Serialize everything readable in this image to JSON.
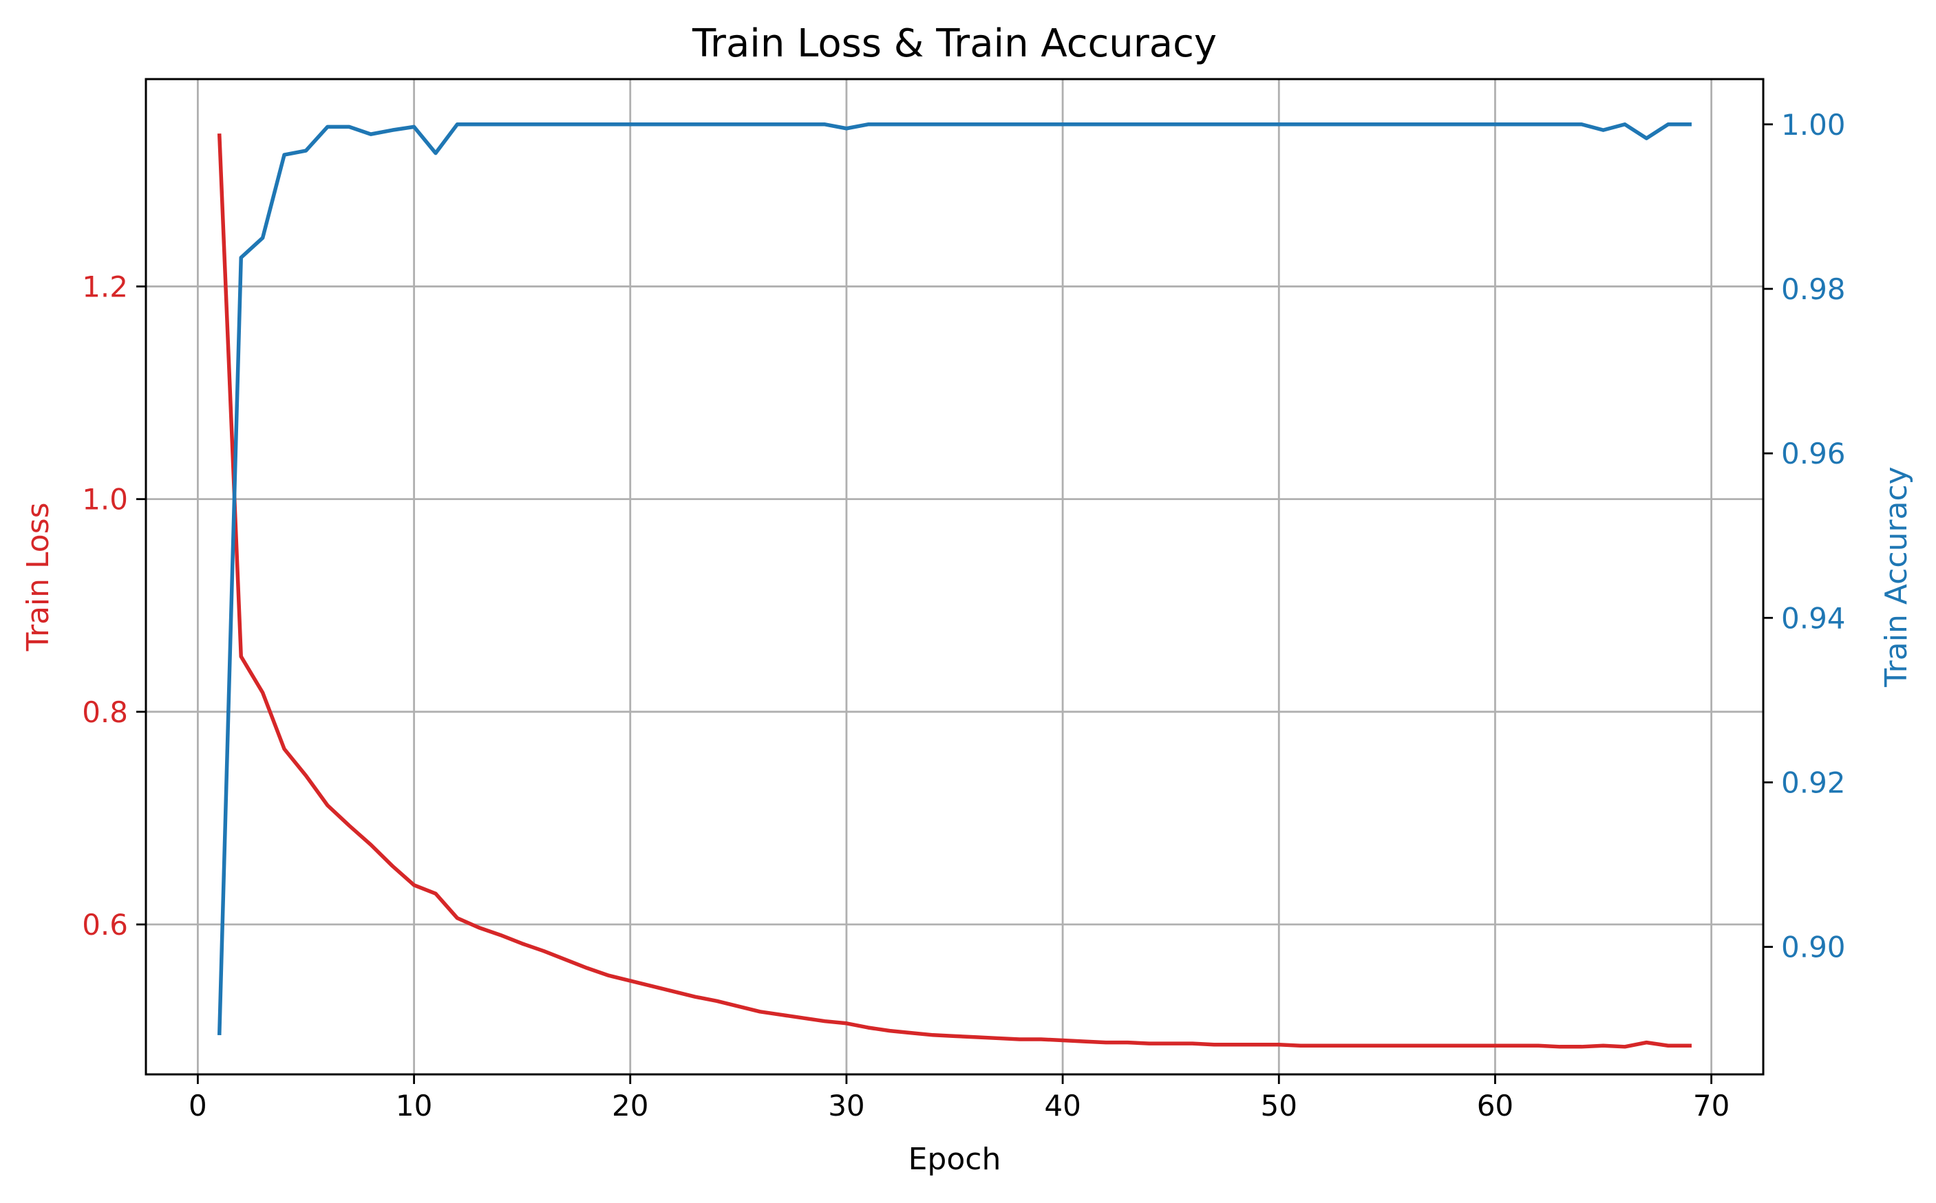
{
  "chart_data": {
    "type": "line",
    "title": "Train Loss & Train Accuracy",
    "xlabel": "Epoch",
    "xlim": [
      -2.4,
      72.4
    ],
    "xticks": [
      0,
      10,
      20,
      30,
      40,
      50,
      60,
      70
    ],
    "grid": true,
    "legend": "none",
    "axes": {
      "left": {
        "label": "Train Loss",
        "color": "#d62728",
        "ylim": [
          0.459,
          1.395
        ],
        "ticks": [
          0.6,
          0.8,
          1.0,
          1.2
        ],
        "tick_labels": [
          "0.6",
          "0.8",
          "1.0",
          "1.2"
        ]
      },
      "right": {
        "label": "Train Accuracy",
        "color": "#1f77b4",
        "ylim": [
          0.8845,
          1.0055
        ],
        "ticks": [
          0.9,
          0.92,
          0.94,
          0.96,
          0.98,
          1.0
        ],
        "tick_labels": [
          "0.90",
          "0.92",
          "0.94",
          "0.96",
          "0.98",
          "1.00"
        ]
      }
    },
    "x": [
      1,
      2,
      3,
      4,
      5,
      6,
      7,
      8,
      9,
      10,
      11,
      12,
      13,
      14,
      15,
      16,
      17,
      18,
      19,
      20,
      21,
      22,
      23,
      24,
      25,
      26,
      27,
      28,
      29,
      30,
      31,
      32,
      33,
      34,
      35,
      36,
      37,
      38,
      39,
      40,
      41,
      42,
      43,
      44,
      45,
      46,
      47,
      48,
      49,
      50,
      51,
      52,
      53,
      54,
      55,
      56,
      57,
      58,
      59,
      60,
      61,
      62,
      63,
      64,
      65,
      66,
      67,
      68,
      69
    ],
    "series": [
      {
        "axis": "left",
        "color": "#d62728",
        "values": [
          1.342,
          0.852,
          0.818,
          0.765,
          0.74,
          0.712,
          0.693,
          0.675,
          0.655,
          0.637,
          0.629,
          0.606,
          0.597,
          0.59,
          0.582,
          0.575,
          0.567,
          0.559,
          0.552,
          0.547,
          0.542,
          0.537,
          0.532,
          0.528,
          0.523,
          0.518,
          0.515,
          0.512,
          0.509,
          0.507,
          0.503,
          0.5,
          0.498,
          0.496,
          0.495,
          0.494,
          0.493,
          0.492,
          0.492,
          0.491,
          0.49,
          0.489,
          0.489,
          0.488,
          0.488,
          0.488,
          0.487,
          0.487,
          0.487,
          0.487,
          0.486,
          0.486,
          0.486,
          0.486,
          0.486,
          0.486,
          0.486,
          0.486,
          0.486,
          0.486,
          0.486,
          0.486,
          0.485,
          0.485,
          0.486,
          0.485,
          0.489,
          0.486,
          0.486
        ]
      },
      {
        "axis": "right",
        "color": "#1f77b4",
        "values": [
          0.8895,
          0.9838,
          0.9862,
          0.9963,
          0.9968,
          0.9997,
          0.9997,
          0.9988,
          0.9993,
          0.9997,
          0.9965,
          1.0,
          1.0,
          1.0,
          1.0,
          1.0,
          1.0,
          1.0,
          1.0,
          1.0,
          1.0,
          1.0,
          1.0,
          1.0,
          1.0,
          1.0,
          1.0,
          1.0,
          1.0,
          0.9995,
          1.0,
          1.0,
          1.0,
          1.0,
          1.0,
          1.0,
          1.0,
          1.0,
          1.0,
          1.0,
          1.0,
          1.0,
          1.0,
          1.0,
          1.0,
          1.0,
          1.0,
          1.0,
          1.0,
          1.0,
          1.0,
          1.0,
          1.0,
          1.0,
          1.0,
          1.0,
          1.0,
          1.0,
          1.0,
          1.0,
          1.0,
          1.0,
          1.0,
          1.0,
          0.9993,
          1.0,
          0.9983,
          1.0,
          1.0
        ]
      }
    ]
  }
}
